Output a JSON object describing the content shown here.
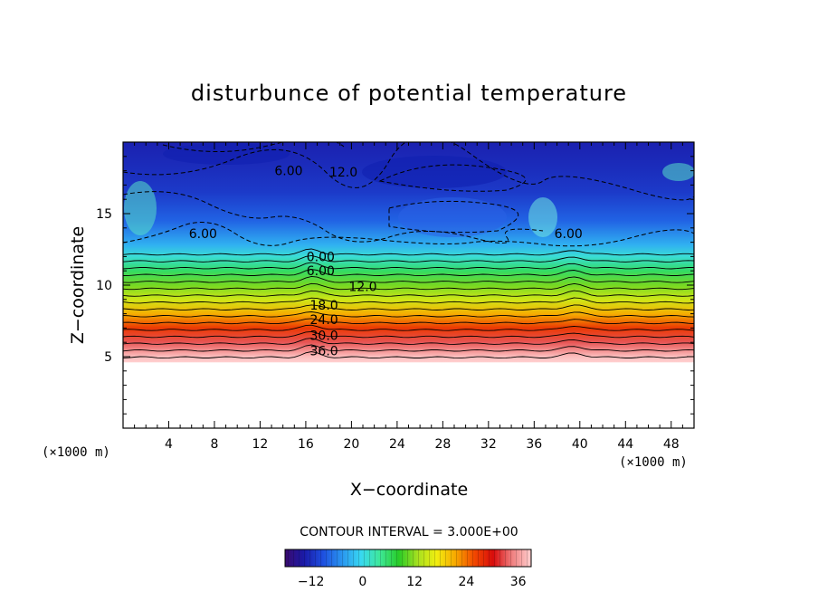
{
  "chart_data": {
    "type": "heatmap",
    "title": "disturbunce of potential temperature",
    "xlabel": "X−coordinate",
    "ylabel": "Z−coordinate",
    "x_unit_left": "(×1000 m)",
    "x_unit_right": "(×1000 m)",
    "xlim": [
      0,
      50
    ],
    "ylim": [
      0,
      20
    ],
    "x_ticks": [
      4,
      8,
      12,
      16,
      20,
      24,
      28,
      32,
      36,
      40,
      44,
      48
    ],
    "y_ticks": [
      5,
      10,
      15
    ],
    "contour_interval_text": "CONTOUR INTERVAL = 3.000E+00",
    "contour_interval": 3.0,
    "no_data_below_z": 4.6,
    "contour_labels": [
      {
        "text": "6.00",
        "x": 14.5,
        "z": 18.0
      },
      {
        "text": "12.0",
        "x": 19.3,
        "z": 17.9
      },
      {
        "text": "6.00",
        "x": 7.0,
        "z": 13.6
      },
      {
        "text": "6.00",
        "x": 39.0,
        "z": 13.6
      },
      {
        "text": "0.00",
        "x": 17.3,
        "z": 12.0
      },
      {
        "text": "6.00",
        "x": 17.3,
        "z": 11.0
      },
      {
        "text": "12.0",
        "x": 21.0,
        "z": 9.9
      },
      {
        "text": "18.0",
        "x": 17.6,
        "z": 8.6
      },
      {
        "text": "24.0",
        "x": 17.6,
        "z": 7.6
      },
      {
        "text": "30.0",
        "x": 17.6,
        "z": 6.5
      },
      {
        "text": "36.0",
        "x": 17.6,
        "z": 5.4
      }
    ],
    "field_profile": [
      {
        "z": 4.6,
        "value": 40
      },
      {
        "z": 5.0,
        "value": 38
      },
      {
        "z": 6.0,
        "value": 33
      },
      {
        "z": 7.0,
        "value": 27
      },
      {
        "z": 8.0,
        "value": 21
      },
      {
        "z": 9.0,
        "value": 15
      },
      {
        "z": 10.0,
        "value": 11
      },
      {
        "z": 11.0,
        "value": 6
      },
      {
        "z": 12.0,
        "value": 1
      },
      {
        "z": 12.8,
        "value": -3
      },
      {
        "z": 14.5,
        "value": -8
      },
      {
        "z": 16.5,
        "value": -11
      },
      {
        "z": 18.0,
        "value": -12
      },
      {
        "z": 20.0,
        "value": -13
      }
    ],
    "colorbar": {
      "min": -18,
      "max": 39,
      "tick_values": [
        -12,
        0,
        12,
        24,
        36
      ],
      "tick_labels": [
        "−12",
        "0",
        "12",
        "24",
        "36"
      ],
      "colors": [
        "#3a0a6e",
        "#1a1aa8",
        "#1e4fe0",
        "#2a95f0",
        "#38d8f2",
        "#3ee89a",
        "#28cc28",
        "#a6e020",
        "#f2ee10",
        "#f7a800",
        "#f24800",
        "#d80c0c",
        "#f08080",
        "#ffd0d0"
      ]
    }
  }
}
